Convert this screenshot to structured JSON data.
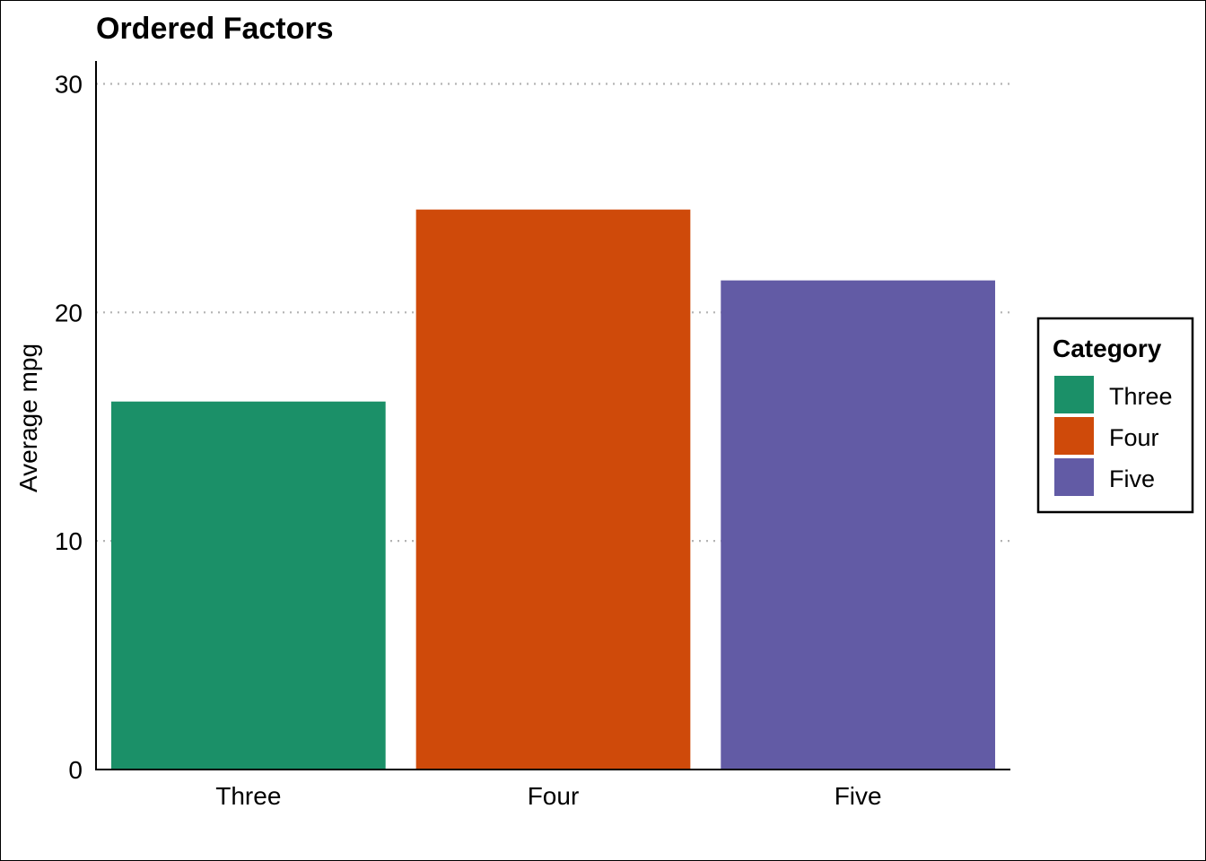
{
  "chart_data": {
    "type": "bar",
    "title": "Ordered Factors",
    "xlabel": "",
    "ylabel": "Average mpg",
    "categories": [
      "Three",
      "Four",
      "Five"
    ],
    "values": [
      16.1,
      24.5,
      21.4
    ],
    "colors": [
      "#1B9068",
      "#CF4A0A",
      "#625BA5"
    ],
    "ylim": [
      0,
      31
    ],
    "yticks": [
      0,
      10,
      20,
      30
    ],
    "grid": "horizontal-dotted",
    "legend": {
      "title": "Category",
      "position": "right",
      "entries": [
        "Three",
        "Four",
        "Five"
      ]
    }
  }
}
